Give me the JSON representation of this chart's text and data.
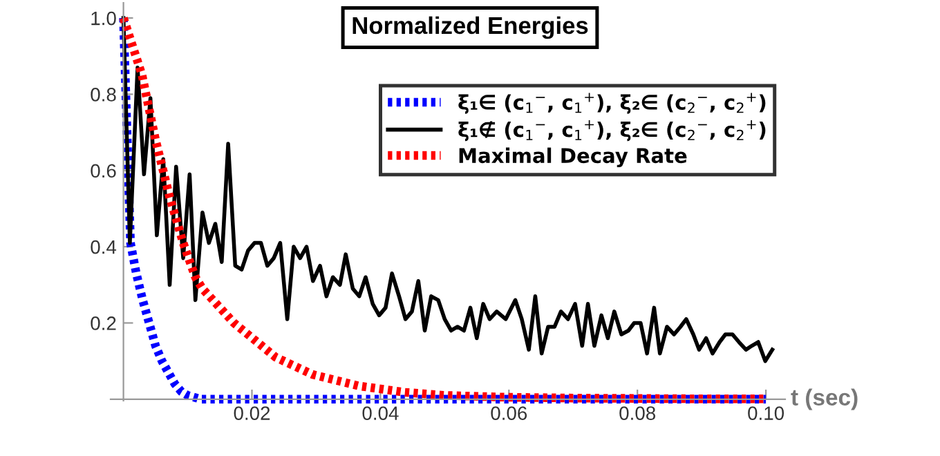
{
  "chart_data": {
    "type": "line",
    "title": "Normalized Energies",
    "xlabel": "t (sec)",
    "xlim": [
      -0.002,
      0.103
    ],
    "ylim": [
      -0.004,
      1.04
    ],
    "xticks": [
      0.02,
      0.04,
      0.06,
      0.08,
      {
        "value": 0.1,
        "label": "0.10"
      }
    ],
    "yticks": [
      0.2,
      0.4,
      0.6,
      0.8,
      {
        "value": 1,
        "label": "1.0"
      }
    ],
    "grid": false,
    "legend": "right",
    "marker": "none",
    "series": [
      {
        "name": "ξ₁∈ (c$_{1}$$^{−}$, c$_{1}$$^{+}$), ξ₂∈ (c$_{2}$$^{−}$, c$_{2}$$^{+}$)",
        "color": "#0000ff",
        "line_style": "dotted",
        "x": [
          0,
          0.0011,
          0.002,
          0.003,
          0.004,
          0.005,
          0.006,
          0.007,
          0.008,
          0.009,
          0.01,
          0.011,
          0.012,
          0.02,
          0.03,
          0.04,
          0.05,
          0.06,
          0.07,
          0.08,
          0.09,
          0.1
        ],
        "values": [
          1.0,
          0.41,
          0.33,
          0.26,
          0.2,
          0.14,
          0.1,
          0.07,
          0.04,
          0.02,
          0.01,
          0.005,
          0.0,
          0.0,
          0.0,
          0.0,
          0.0,
          0.0,
          0.0,
          0.0,
          0.0,
          0.0
        ]
      },
      {
        "name": "ξ₁∉ (c$_{1}$$^{−}$, c$_{1}$$^{+}$), ξ₂∈ (c$_{2}$$^{−}$, c$_{2}$$^{+}$)",
        "color": "#000000",
        "line_style": "solid",
        "x": [
          0,
          0.001,
          0.0022,
          0.0032,
          0.0042,
          0.0052,
          0.0062,
          0.0072,
          0.0082,
          0.0093,
          0.0103,
          0.0112,
          0.0123,
          0.0133,
          0.0143,
          0.0153,
          0.0163,
          0.0174,
          0.0184,
          0.0194,
          0.0204,
          0.0214,
          0.0224,
          0.0234,
          0.0244,
          0.0255,
          0.0265,
          0.0275,
          0.0285,
          0.0295,
          0.0306,
          0.0316,
          0.0326,
          0.0337,
          0.0346,
          0.0357,
          0.0367,
          0.0377,
          0.0388,
          0.0398,
          0.0408,
          0.0418,
          0.0429,
          0.0439,
          0.0449,
          0.0459,
          0.0469,
          0.0479,
          0.049,
          0.05,
          0.051,
          0.052,
          0.053,
          0.054,
          0.055,
          0.056,
          0.057,
          0.0581,
          0.0595,
          0.061,
          0.062,
          0.0631,
          0.0641,
          0.0651,
          0.0661,
          0.0671,
          0.0681,
          0.0692,
          0.0703,
          0.0714,
          0.0723,
          0.0733,
          0.0744,
          0.0754,
          0.0764,
          0.0775,
          0.0786,
          0.0795,
          0.0805,
          0.0815,
          0.0826,
          0.0835,
          0.0846,
          0.0857,
          0.0867,
          0.0876,
          0.0887,
          0.0896,
          0.0907,
          0.0917,
          0.0928,
          0.0937,
          0.0948,
          0.0958,
          0.0969,
          0.0978,
          0.0988,
          0.0999,
          0.101
        ],
        "values": [
          1.0,
          0.41,
          0.87,
          0.59,
          0.79,
          0.43,
          0.63,
          0.3,
          0.61,
          0.37,
          0.59,
          0.26,
          0.49,
          0.41,
          0.46,
          0.36,
          0.67,
          0.35,
          0.34,
          0.39,
          0.41,
          0.41,
          0.35,
          0.37,
          0.41,
          0.21,
          0.4,
          0.37,
          0.4,
          0.31,
          0.35,
          0.27,
          0.32,
          0.3,
          0.38,
          0.29,
          0.27,
          0.32,
          0.25,
          0.22,
          0.24,
          0.33,
          0.27,
          0.21,
          0.23,
          0.31,
          0.18,
          0.27,
          0.26,
          0.21,
          0.18,
          0.19,
          0.18,
          0.24,
          0.16,
          0.25,
          0.21,
          0.23,
          0.21,
          0.26,
          0.21,
          0.13,
          0.27,
          0.12,
          0.19,
          0.19,
          0.23,
          0.21,
          0.25,
          0.14,
          0.25,
          0.14,
          0.22,
          0.16,
          0.23,
          0.17,
          0.18,
          0.2,
          0.2,
          0.12,
          0.24,
          0.12,
          0.19,
          0.17,
          0.19,
          0.21,
          0.17,
          0.13,
          0.16,
          0.12,
          0.15,
          0.17,
          0.17,
          0.15,
          0.13,
          0.14,
          0.15,
          0.1,
          0.13
        ]
      },
      {
        "name": "Maximal Decay Rate",
        "color": "#ff0000",
        "line_style": "dotted",
        "x": [
          0,
          0.0029,
          0.005,
          0.0072,
          0.0093,
          0.0112,
          0.0123,
          0.0172,
          0.0237,
          0.0294,
          0.0366,
          0.0438,
          0.05,
          0.06,
          0.07,
          0.08,
          0.09,
          0.1
        ],
        "values": [
          1.0,
          0.85,
          0.68,
          0.53,
          0.41,
          0.32,
          0.29,
          0.2,
          0.11,
          0.065,
          0.035,
          0.018,
          0.01,
          0.005,
          0.003,
          0.002,
          0.001,
          0.001
        ]
      }
    ]
  }
}
